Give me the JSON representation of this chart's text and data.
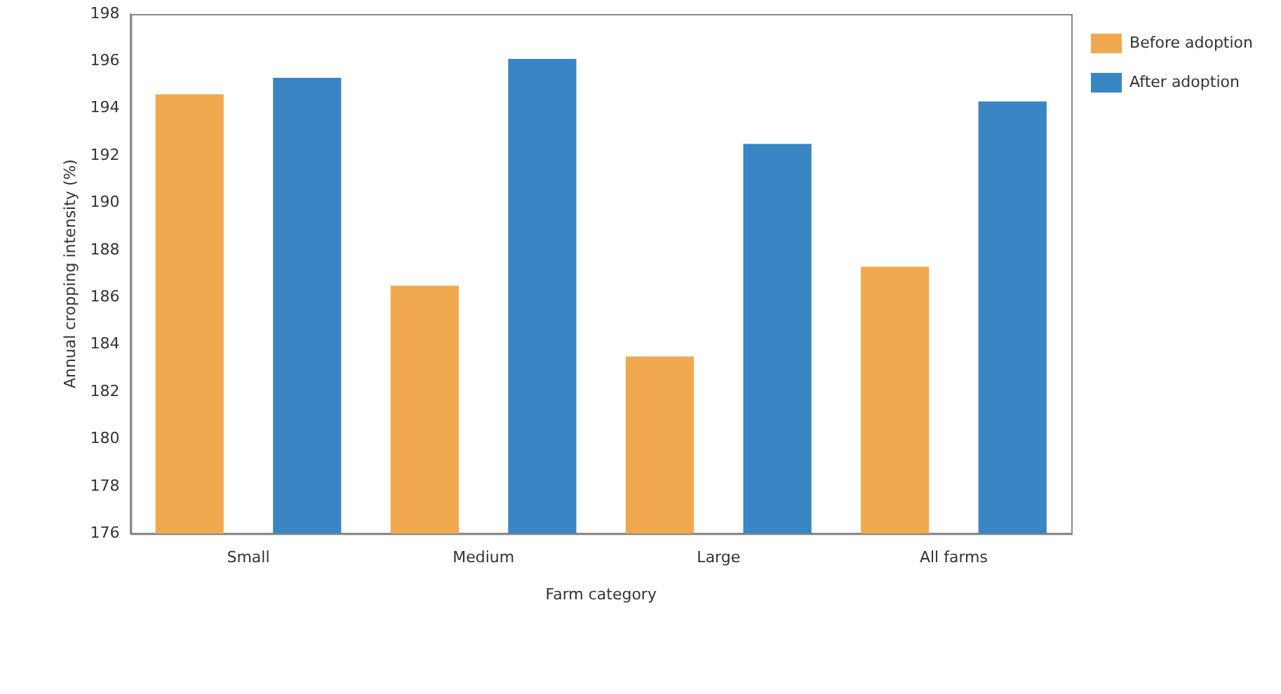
{
  "chart_data": {
    "type": "bar",
    "xlabel": "Farm category",
    "ylabel": "Annual cropping intensity (%)",
    "categories": [
      "Small",
      "Medium",
      "Large",
      "All farms"
    ],
    "series": [
      {
        "name": "Before adoption",
        "color": "#f0a94f",
        "values": [
          194.6,
          186.5,
          183.5,
          187.3
        ]
      },
      {
        "name": "After adoption",
        "color": "#3a85c4",
        "values": [
          195.3,
          196.1,
          192.5,
          194.3
        ]
      }
    ],
    "ylim": [
      176,
      198
    ],
    "yticks": [
      176,
      178,
      180,
      182,
      184,
      186,
      188,
      190,
      192,
      194,
      196,
      198
    ],
    "grid": false,
    "legend": "top right"
  }
}
